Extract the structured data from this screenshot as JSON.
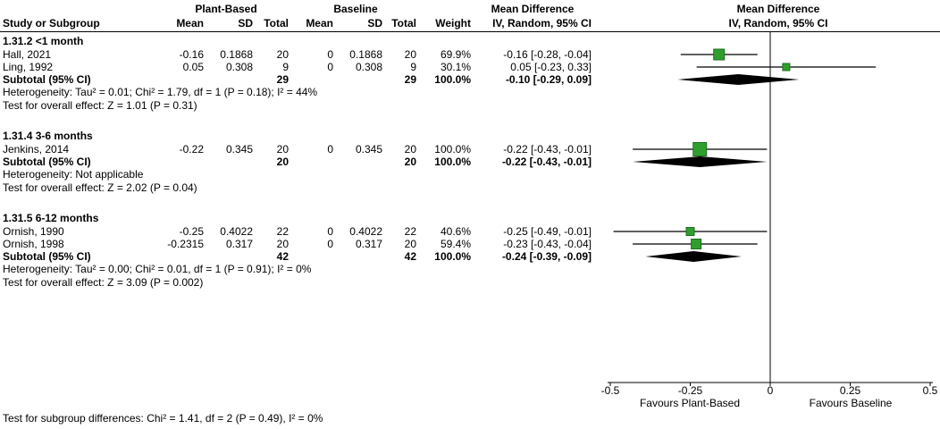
{
  "header": {
    "group1_label": "Plant-Based",
    "group2_label": "Baseline",
    "effect_title": "Mean Difference",
    "effect_subtitle": "IV, Random, 95% CI",
    "plot_title": "Mean Difference",
    "plot_subtitle": "IV, Random, 95% CI",
    "col_study": "Study or Subgroup",
    "col_mean": "Mean",
    "col_sd": "SD",
    "col_total": "Total",
    "col_weight": "Weight",
    "col_ci": "IV, Random, 95% CI"
  },
  "footer": {
    "subgroup_test": "Test for subgroup differences: Chi² = 1.41, df = 2 (P = 0.49), I² = 0%",
    "favours_left": "Favours Plant-Based",
    "favours_right": "Favours Baseline"
  },
  "chart_data": {
    "type": "forest",
    "effect_measure": "Mean Difference",
    "method": "IV, Random, 95% CI",
    "x_axis": {
      "min": -0.5,
      "max": 0.5,
      "ticks": [
        -0.5,
        -0.25,
        0,
        0.25,
        0.5
      ],
      "tick_labels": [
        "-0.5",
        "-0.25",
        "0",
        "0.25",
        "0.5"
      ]
    },
    "colors": {
      "square": "#2e9f2e",
      "square_border": "#1d6f1d",
      "diamond": "#000000",
      "line": "#000000"
    },
    "subgroups": [
      {
        "title": "1.31.2 <1 month",
        "studies": [
          {
            "name": "Hall, 2021",
            "mean1": "-0.16",
            "sd1": "0.1868",
            "total1": "20",
            "mean2": "0",
            "sd2": "0.1868",
            "total2": "20",
            "weight": "69.9%",
            "ci_text": "-0.16 [-0.28, -0.04]",
            "est": -0.16,
            "lo": -0.28,
            "hi": -0.04,
            "weight_pct": 69.9
          },
          {
            "name": "Ling, 1992",
            "mean1": "0.05",
            "sd1": "0.308",
            "total1": "9",
            "mean2": "0",
            "sd2": "0.308",
            "total2": "9",
            "weight": "30.1%",
            "ci_text": "0.05 [-0.23, 0.33]",
            "est": 0.05,
            "lo": -0.23,
            "hi": 0.33,
            "weight_pct": 30.1
          }
        ],
        "subtotal": {
          "label": "Subtotal (95% CI)",
          "total1": "29",
          "total2": "29",
          "weight": "100.0%",
          "ci_text": "-0.10 [-0.29, 0.09]",
          "est": -0.1,
          "lo": -0.29,
          "hi": 0.09
        },
        "heterogeneity": "Heterogeneity: Tau² = 0.01; Chi² = 1.79, df = 1 (P = 0.18); I² = 44%",
        "overall_effect": "Test for overall effect: Z = 1.01 (P = 0.31)"
      },
      {
        "title": "1.31.4 3-6 months",
        "studies": [
          {
            "name": "Jenkins, 2014",
            "mean1": "-0.22",
            "sd1": "0.345",
            "total1": "20",
            "mean2": "0",
            "sd2": "0.345",
            "total2": "20",
            "weight": "100.0%",
            "ci_text": "-0.22 [-0.43, -0.01]",
            "est": -0.22,
            "lo": -0.43,
            "hi": -0.01,
            "weight_pct": 100
          }
        ],
        "subtotal": {
          "label": "Subtotal (95% CI)",
          "total1": "20",
          "total2": "20",
          "weight": "100.0%",
          "ci_text": "-0.22 [-0.43, -0.01]",
          "est": -0.22,
          "lo": -0.43,
          "hi": -0.01
        },
        "heterogeneity": "Heterogeneity: Not applicable",
        "overall_effect": "Test for overall effect: Z = 2.02 (P = 0.04)"
      },
      {
        "title": "1.31.5 6-12 months",
        "studies": [
          {
            "name": "Ornish, 1990",
            "mean1": "-0.25",
            "sd1": "0.4022",
            "total1": "22",
            "mean2": "0",
            "sd2": "0.4022",
            "total2": "22",
            "weight": "40.6%",
            "ci_text": "-0.25 [-0.49, -0.01]",
            "est": -0.25,
            "lo": -0.49,
            "hi": -0.01,
            "weight_pct": 40.6
          },
          {
            "name": "Ornish, 1998",
            "mean1": "-0.2315",
            "sd1": "0.317",
            "total1": "20",
            "mean2": "0",
            "sd2": "0.317",
            "total2": "20",
            "weight": "59.4%",
            "ci_text": "-0.23 [-0.43, -0.04]",
            "est": -0.2315,
            "lo": -0.43,
            "hi": -0.04,
            "weight_pct": 59.4
          }
        ],
        "subtotal": {
          "label": "Subtotal (95% CI)",
          "total1": "42",
          "total2": "42",
          "weight": "100.0%",
          "ci_text": "-0.24 [-0.39, -0.09]",
          "est": -0.24,
          "lo": -0.39,
          "hi": -0.09
        },
        "heterogeneity": "Heterogeneity: Tau² = 0.00; Chi² = 0.01, df = 1 (P = 0.91); I² = 0%",
        "overall_effect": "Test for overall effect: Z = 3.09 (P = 0.002)"
      }
    ]
  }
}
